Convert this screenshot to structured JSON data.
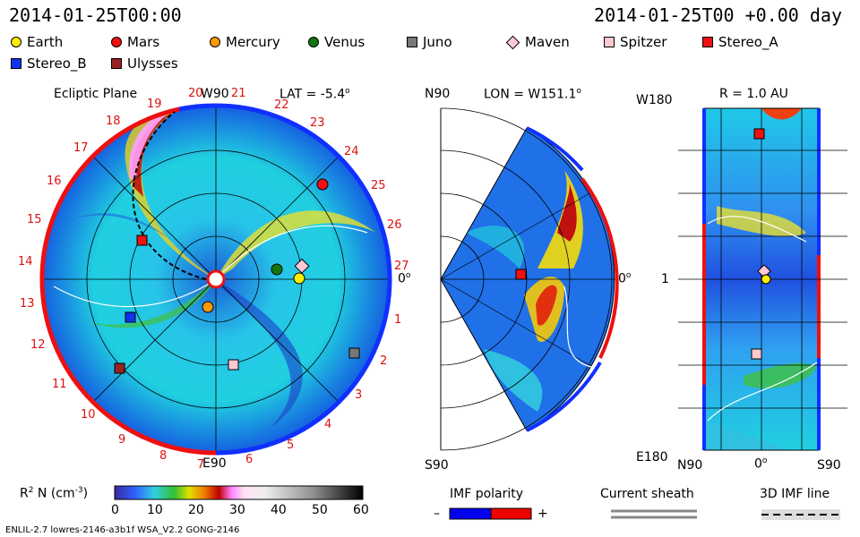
{
  "header": {
    "timestamp_left": "2014-01-25T00:00",
    "timestamp_right": "2014-01-25T00 +0.00 day"
  },
  "legend": {
    "items": [
      {
        "label": "Earth",
        "shape": "circle",
        "color": "#ffee00"
      },
      {
        "label": "Mars",
        "shape": "circle",
        "color": "#ee1111"
      },
      {
        "label": "Mercury",
        "shape": "circle",
        "color": "#ff9900"
      },
      {
        "label": "Venus",
        "shape": "circle",
        "color": "#117711"
      },
      {
        "label": "Juno",
        "shape": "square",
        "color": "#777777"
      },
      {
        "label": "Maven",
        "shape": "diamond",
        "color": "#ffc8d8"
      },
      {
        "label": "Spitzer",
        "shape": "square",
        "color": "#ffc8d0"
      },
      {
        "label": "Stereo_A",
        "shape": "square",
        "color": "#ee1111"
      },
      {
        "label": "Stereo_B",
        "shape": "square",
        "color": "#1133ee"
      },
      {
        "label": "Ulysses",
        "shape": "square",
        "color": "#992222"
      }
    ]
  },
  "panel1": {
    "title": "Ecliptic Plane",
    "lat_label": "LAT = -5.4",
    "top_label": "W90",
    "bottom_label": "E90",
    "right_label": "0",
    "carrington_numbers": [
      "19",
      "20",
      "21",
      "22",
      "23",
      "24",
      "25",
      "26",
      "27",
      "1",
      "2",
      "3",
      "4",
      "5",
      "6",
      "7",
      "8",
      "9",
      "10",
      "11",
      "12",
      "13",
      "14",
      "15",
      "16",
      "17",
      "18"
    ]
  },
  "panel2": {
    "top_label": "N90",
    "lon_label": "LON = W151.1",
    "bottom_label": "S90",
    "right_label": "0"
  },
  "panel3": {
    "r_label": "R = 1.0 AU",
    "top_label": "W180",
    "mid_label": "1",
    "bottom_label": "E180",
    "x_left": "N90",
    "x_mid": "0",
    "x_right": "S90"
  },
  "colorbar": {
    "label": "R",
    "label_rest": " N (cm",
    "label_end": ")",
    "ticks": [
      "0",
      "10",
      "20",
      "30",
      "40",
      "50",
      "60"
    ]
  },
  "imf_polarity": {
    "title": "IMF polarity",
    "minus": "–",
    "plus": "+"
  },
  "current_sheath": {
    "title": "Current sheath"
  },
  "imf_line": {
    "title": "3D IMF line"
  },
  "footer": {
    "model_text": "ENLIL-2.7 lowres-2146-a3b1f WSA_V2.2 GONG-2146"
  },
  "colors": {
    "neg_polarity": "#0000ee",
    "pos_polarity": "#ee0000"
  }
}
